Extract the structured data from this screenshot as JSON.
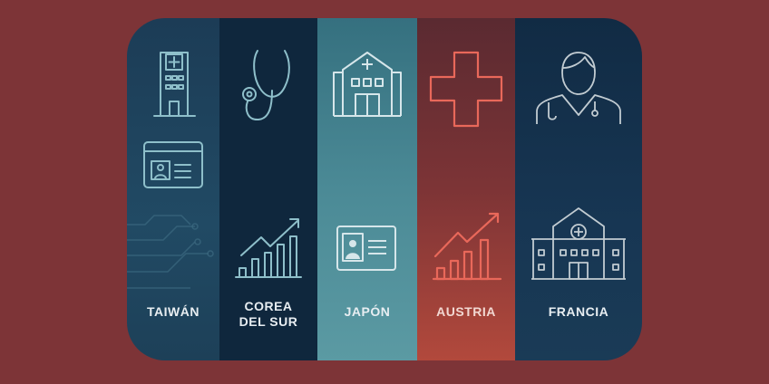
{
  "countries": [
    {
      "label": "TAIWÁN",
      "icons": [
        "hospital-building-icon",
        "id-card-icon",
        "circuit-icon"
      ]
    },
    {
      "label": "COREA\nDEL SUR",
      "line1": "COREA",
      "line2": "DEL SUR",
      "icons": [
        "stethoscope-icon",
        "growth-chart-icon"
      ]
    },
    {
      "label": "JAPÓN",
      "icons": [
        "hospital-icon",
        "id-card-icon"
      ]
    },
    {
      "label": "AUSTRIA",
      "icons": [
        "medical-cross-icon",
        "growth-chart-icon"
      ]
    },
    {
      "label": "FRANCIA",
      "icons": [
        "doctor-icon",
        "hospital-icon"
      ]
    }
  ],
  "colors": {
    "background": "#7d3437",
    "taiwan": "#1f4560",
    "korea": "#0f273d",
    "japan": "#4b8a96",
    "austria": "#8c3a38",
    "france": "#173653",
    "austria_icons": "#e9685a"
  }
}
